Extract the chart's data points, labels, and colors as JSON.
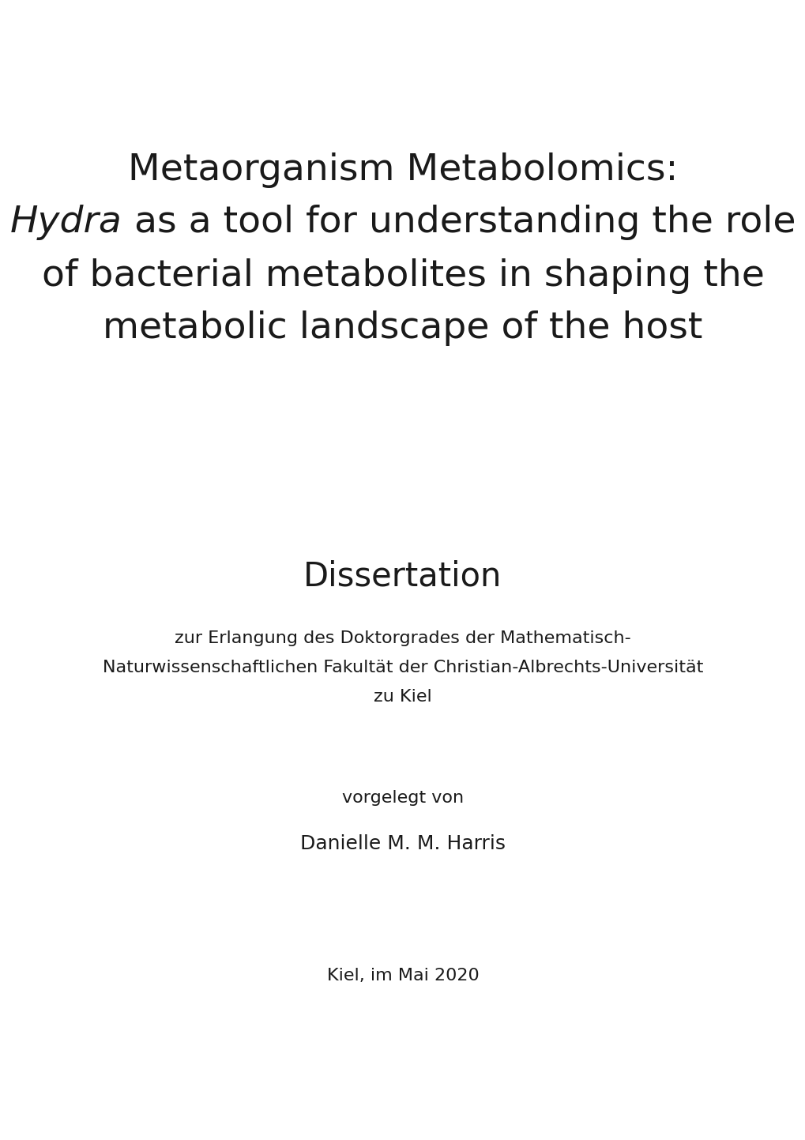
{
  "background_color": "#ffffff",
  "title_line1": "Metaorganism Metabolomics:",
  "title_line2_italic": "Hydra",
  "title_line2_normal": " as a tool for understanding the role",
  "title_line3": "of bacterial metabolites in shaping the",
  "title_line4": "metabolic landscape of the host",
  "title_fontsize": 34,
  "section_label": "Dissertation",
  "section_label_fontsize": 30,
  "subtitle_line1": "zur Erlangung des Doktorgrades der Mathematisch-",
  "subtitle_line2": "Naturwissenschaftlichen Fakultät der Christian-Albrechts-Universität",
  "subtitle_line3": "zu Kiel",
  "subtitle_fontsize": 16,
  "vorgelegt_text": "vorgelegt von",
  "vorgelegt_fontsize": 16,
  "author_text": "Danielle M. M. Harris",
  "author_fontsize": 18,
  "date_text": "Kiel, im Mai 2020",
  "date_fontsize": 16,
  "text_color": "#1a1a1a",
  "font_family": "DejaVu Sans"
}
